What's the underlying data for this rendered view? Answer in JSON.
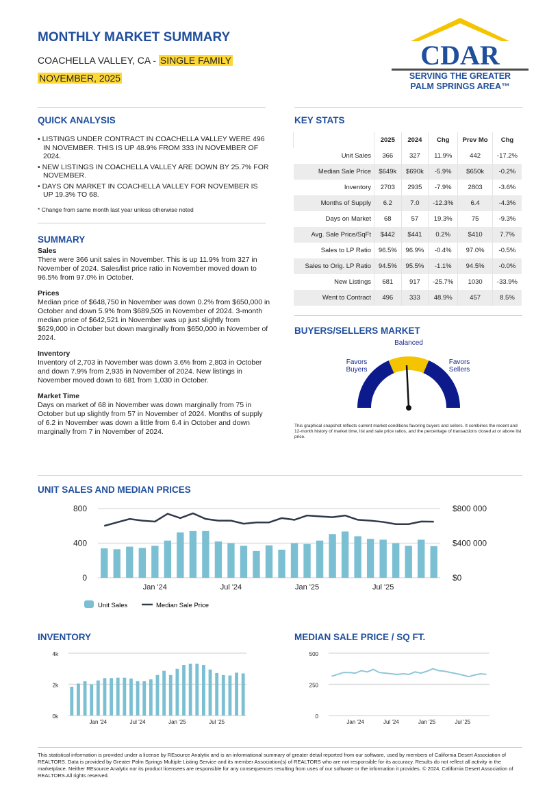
{
  "header": {
    "title": "MONTHLY MARKET SUMMARY",
    "region": "COACHELLA VALLEY, CA - ",
    "property_type": "SINGLE FAMILY",
    "period": "NOVEMBER, 2025"
  },
  "logo": {
    "text": "CDAR",
    "tagline1": "SERVING THE GREATER",
    "tagline2": "PALM SPRINGS AREA™",
    "colors": {
      "blue": "#1f4e9c",
      "yellow": "#f5c400",
      "gray": "#4a4a4a"
    }
  },
  "quick_analysis": {
    "title": "QUICK ANALYSIS",
    "items": [
      "• LISTINGS UNDER CONTRACT IN COACHELLA VALLEY WERE 496 IN NOVEMBER. THIS IS UP 48.9% FROM 333 IN NOVEMBER OF 2024.",
      "• NEW LISTINGS IN COACHELLA VALLEY ARE DOWN BY 25.7% FOR NOVEMBER.",
      "• DAYS ON MARKET IN COACHELLA VALLEY FOR NOVEMBER IS UP 19.3% TO 68."
    ],
    "note": "* Change from same month last year unless otherwise noted"
  },
  "summary": {
    "title": "SUMMARY",
    "sections": [
      {
        "heading": "Sales",
        "text": "There were 366 unit sales in November. This is up 11.9% from 327 in November of 2024. Sales/list price ratio in November moved down to 96.5% from 97.0% in October."
      },
      {
        "heading": "Prices",
        "text": "Median price of $648,750 in November was down 0.2% from $650,000 in October and down 5.9% from $689,505 in November of 2024. 3-month median price of $642,521 in November was up just slightly from $629,000 in October but down marginally from $650,000 in November of 2024."
      },
      {
        "heading": "Inventory",
        "text": "Inventory of 2,703 in November was down 3.6% from 2,803 in October and down 7.9% from 2,935 in November of 2024. New listings in November moved down to 681 from 1,030 in October."
      },
      {
        "heading": "Market Time",
        "text": "Days on market of 68 in November was down marginally from 75 in October but up slightly from 57 in November of 2024. Months of supply of 6.2 in November was down a little from 6.4 in October and down marginally from 7 in November of 2024."
      }
    ]
  },
  "key_stats": {
    "title": "KEY STATS",
    "columns": [
      "",
      "2025",
      "2024",
      "Chg",
      "Prev Mo",
      "Chg"
    ],
    "rows": [
      [
        "Unit Sales",
        "366",
        "327",
        "11.9%",
        "442",
        "-17.2%"
      ],
      [
        "Median Sale Price",
        "$649k",
        "$690k",
        "-5.9%",
        "$650k",
        "-0.2%"
      ],
      [
        "Inventory",
        "2703",
        "2935",
        "-7.9%",
        "2803",
        "-3.6%"
      ],
      [
        "Months of Supply",
        "6.2",
        "7.0",
        "-12.3%",
        "6.4",
        "-4.3%"
      ],
      [
        "Days on Market",
        "68",
        "57",
        "19.3%",
        "75",
        "-9.3%"
      ],
      [
        "Avg. Sale Price/SqFt",
        "$442",
        "$441",
        "0.2%",
        "$410",
        "7.7%"
      ],
      [
        "Sales to LP Ratio",
        "96.5%",
        "96.9%",
        "-0.4%",
        "97.0%",
        "-0.5%"
      ],
      [
        "Sales to Orig. LP Ratio",
        "94.5%",
        "95.5%",
        "-1.1%",
        "94.5%",
        "-0.0%"
      ],
      [
        "New Listings",
        "681",
        "917",
        "-25.7%",
        "1030",
        "-33.9%"
      ],
      [
        "Went to Contract",
        "496",
        "333",
        "48.9%",
        "457",
        "8.5%"
      ]
    ]
  },
  "market_gauge": {
    "title": "BUYERS/SELLERS MARKET",
    "label_center": "Balanced",
    "label_left": "Favors Buyers",
    "label_right": "Favors Sellers",
    "state": "Balanced",
    "colors": {
      "sides": "#0d1a8c",
      "center": "#f5c400"
    },
    "note": "This graphical snapshot reflects current market conditions favoring buyers and sellers. It combines the recent and 12-month history of market time, list and sale price ratios, and the percentage of transactions closed at or above list price."
  },
  "chart_data": [
    {
      "type": "bar+line",
      "title": "UNIT SALES AND MEDIAN PRICES",
      "x_range": [
        "Sep 2023",
        "Nov 2025"
      ],
      "x_ticks": [
        "Jan '24",
        "Jul '24",
        "Jan '25",
        "Jul '25"
      ],
      "y_left": {
        "ticks": [
          "0",
          "400",
          "800"
        ],
        "range": [
          0,
          800
        ]
      },
      "y_right": {
        "ticks": [
          "$0",
          "$400 000",
          "$800 000"
        ],
        "range": [
          0,
          800000
        ]
      },
      "series": [
        {
          "name": "Unit Sales",
          "type": "bar",
          "color": "#7bbfd2",
          "values": [
            340,
            330,
            360,
            345,
            370,
            430,
            525,
            540,
            540,
            420,
            400,
            370,
            310,
            375,
            325,
            400,
            390,
            430,
            505,
            535,
            480,
            450,
            440,
            400,
            370,
            440,
            366
          ]
        },
        {
          "name": "Median Sale Price",
          "type": "line",
          "color": "#2f3a4a",
          "values": [
            600000,
            640000,
            680000,
            660000,
            650000,
            740000,
            690000,
            745000,
            680000,
            660000,
            660000,
            625000,
            640000,
            640000,
            690000,
            670000,
            720000,
            710000,
            700000,
            720000,
            670000,
            660000,
            645000,
            620000,
            620000,
            650000,
            649000
          ]
        }
      ],
      "grid": true,
      "legend": "bottom-left"
    },
    {
      "type": "bar",
      "title": "INVENTORY",
      "x_ticks": [
        "Jan '24",
        "Jul '24",
        "Jan '25",
        "Jul '25"
      ],
      "y_ticks": [
        "0k",
        "2k",
        "4k"
      ],
      "ylim": [
        0,
        4000
      ],
      "color": "#7bbfd2",
      "values": [
        1850,
        2050,
        2200,
        2000,
        2250,
        2400,
        2400,
        2430,
        2430,
        2370,
        2200,
        2200,
        2320,
        2600,
        2870,
        2600,
        3000,
        3250,
        3320,
        3320,
        3250,
        2950,
        2730,
        2600,
        2570,
        2750,
        2703
      ],
      "grid": true
    },
    {
      "type": "line",
      "title": "MEDIAN SALE PRICE / SQ FT.",
      "x_ticks": [
        "Jan '24",
        "Jul '24",
        "Jan '25",
        "Jul '25"
      ],
      "y_ticks": [
        "0",
        "250",
        "500"
      ],
      "ylim": [
        0,
        500
      ],
      "color": "#8ec6d8",
      "values": [
        315,
        330,
        345,
        345,
        340,
        360,
        350,
        370,
        345,
        340,
        335,
        330,
        335,
        330,
        350,
        340,
        355,
        375,
        360,
        355,
        345,
        335,
        325,
        312,
        325,
        335,
        330
      ],
      "grid": true
    }
  ],
  "footer": "This statistical information is provided under a license by REsource Analytix and is an informational summary of greater detail reported from our software, used by members of California Desert Association of REALTORS. Data is provided by Greater Palm Springs Multiple Listing Service and its member Association(s) of REALTORS who are not responsible for its accuracy. Results do not reflect all activity in the marketplace. Neither REsource Analytix nor its product licensees are responsible for any consequences resulting from uses of our software or the information it provides. © 2024, California Desert Association of REALTORS.All rights reserved."
}
